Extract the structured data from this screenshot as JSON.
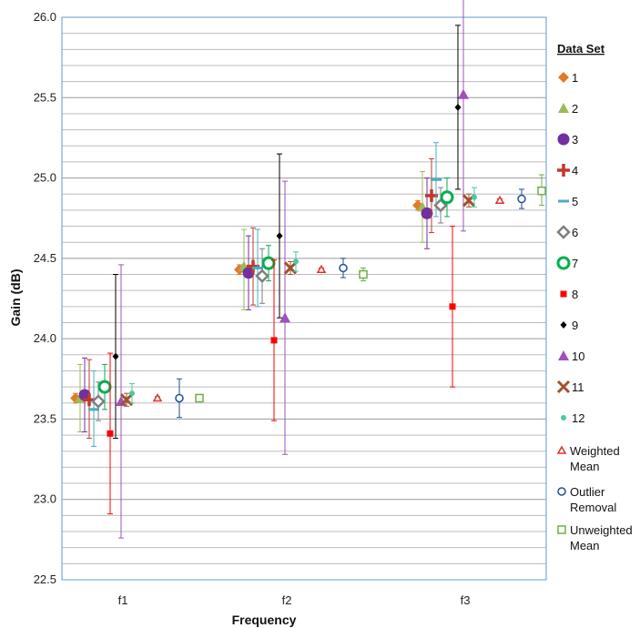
{
  "chart_data": {
    "type": "scatter",
    "title": "",
    "xlabel": "Frequency",
    "ylabel": "Gain  (dB)",
    "ylim": [
      22.5,
      26.0
    ],
    "y_ticks": [
      "22.5",
      "23.0",
      "23.5",
      "24.0",
      "24.5",
      "25.0",
      "25.5",
      "26.0"
    ],
    "categories": [
      "f1",
      "f2",
      "f3"
    ],
    "legend_title": "Data Set",
    "legend_position": "right",
    "grid": "horizontal minor gridlines every 0.1",
    "series": [
      {
        "name": "1",
        "marker": "diamond",
        "color": "#e07b2a",
        "values": [
          23.63,
          24.43,
          24.83
        ],
        "lower": [
          23.6,
          24.4,
          24.8
        ],
        "upper": [
          23.66,
          24.46,
          24.86
        ]
      },
      {
        "name": "2",
        "marker": "triangle",
        "color": "#9bbb59",
        "values": [
          23.63,
          24.45,
          24.82
        ],
        "lower": [
          23.42,
          24.18,
          24.6
        ],
        "upper": [
          23.84,
          24.68,
          25.04
        ]
      },
      {
        "name": "3",
        "marker": "circle",
        "color": "#7030a0",
        "values": [
          23.65,
          24.41,
          24.78
        ],
        "lower": [
          23.42,
          24.18,
          24.56
        ],
        "upper": [
          23.88,
          24.64,
          25.0
        ]
      },
      {
        "name": "4",
        "marker": "plus",
        "color": "#c0392b",
        "values": [
          23.62,
          24.45,
          24.89
        ],
        "lower": [
          23.38,
          24.21,
          24.66
        ],
        "upper": [
          23.87,
          24.69,
          25.12
        ]
      },
      {
        "name": "5",
        "marker": "dash",
        "color": "#4bacc6",
        "values": [
          23.56,
          24.44,
          24.99
        ],
        "lower": [
          23.33,
          24.2,
          24.76
        ],
        "upper": [
          23.8,
          24.68,
          25.22
        ]
      },
      {
        "name": "6",
        "marker": "diamond-open",
        "color": "#7f7f7f",
        "values": [
          23.61,
          24.39,
          24.83
        ],
        "lower": [
          23.49,
          24.22,
          24.72
        ],
        "upper": [
          23.73,
          24.56,
          24.94
        ]
      },
      {
        "name": "7",
        "marker": "circle-open",
        "color": "#00b050",
        "values": [
          23.7,
          24.47,
          24.88
        ],
        "lower": [
          23.56,
          24.36,
          24.76
        ],
        "upper": [
          23.84,
          24.58,
          25.0
        ]
      },
      {
        "name": "8",
        "marker": "square",
        "color": "#ff0000",
        "values": [
          23.41,
          23.99,
          24.2
        ],
        "lower": [
          22.91,
          23.49,
          23.7
        ],
        "upper": [
          23.91,
          24.49,
          24.7
        ]
      },
      {
        "name": "9",
        "marker": "diamond-small",
        "color": "#000000",
        "values": [
          23.89,
          24.64,
          25.44
        ],
        "lower": [
          23.38,
          24.13,
          24.93
        ],
        "upper": [
          24.4,
          25.15,
          25.95
        ]
      },
      {
        "name": "10",
        "marker": "triangle",
        "color": "#a050c0",
        "values": [
          23.61,
          24.13,
          25.52
        ],
        "lower": [
          22.76,
          23.28,
          24.67
        ],
        "upper": [
          24.46,
          24.98,
          26.37
        ]
      },
      {
        "name": "11",
        "marker": "x",
        "color": "#a0522d",
        "values": [
          23.62,
          24.44,
          24.86
        ],
        "lower": [
          23.58,
          24.4,
          24.82
        ],
        "upper": [
          23.66,
          24.48,
          24.9
        ]
      },
      {
        "name": "12",
        "marker": "circle-small",
        "color": "#4bc8a0",
        "values": [
          23.66,
          24.48,
          24.88
        ],
        "lower": [
          23.6,
          24.42,
          24.82
        ],
        "upper": [
          23.72,
          24.54,
          24.94
        ]
      },
      {
        "name": "Weighted Mean",
        "marker": "triangle-open",
        "color": "#e03030",
        "values": [
          23.63,
          24.43,
          24.86
        ],
        "lower": [
          23.62,
          24.42,
          24.85
        ],
        "upper": [
          23.64,
          24.44,
          24.87
        ]
      },
      {
        "name": "Outlier Removal",
        "marker": "circle-open-small",
        "color": "#1f4e9a",
        "values": [
          23.63,
          24.44,
          24.87
        ],
        "lower": [
          23.51,
          24.38,
          24.81
        ],
        "upper": [
          23.75,
          24.5,
          24.93
        ]
      },
      {
        "name": "Unweighted Mean",
        "marker": "square-open",
        "color": "#70ad47",
        "values": [
          23.63,
          24.4,
          24.92
        ],
        "lower": [
          23.61,
          24.36,
          24.83
        ],
        "upper": [
          23.65,
          24.44,
          25.02
        ]
      }
    ]
  }
}
